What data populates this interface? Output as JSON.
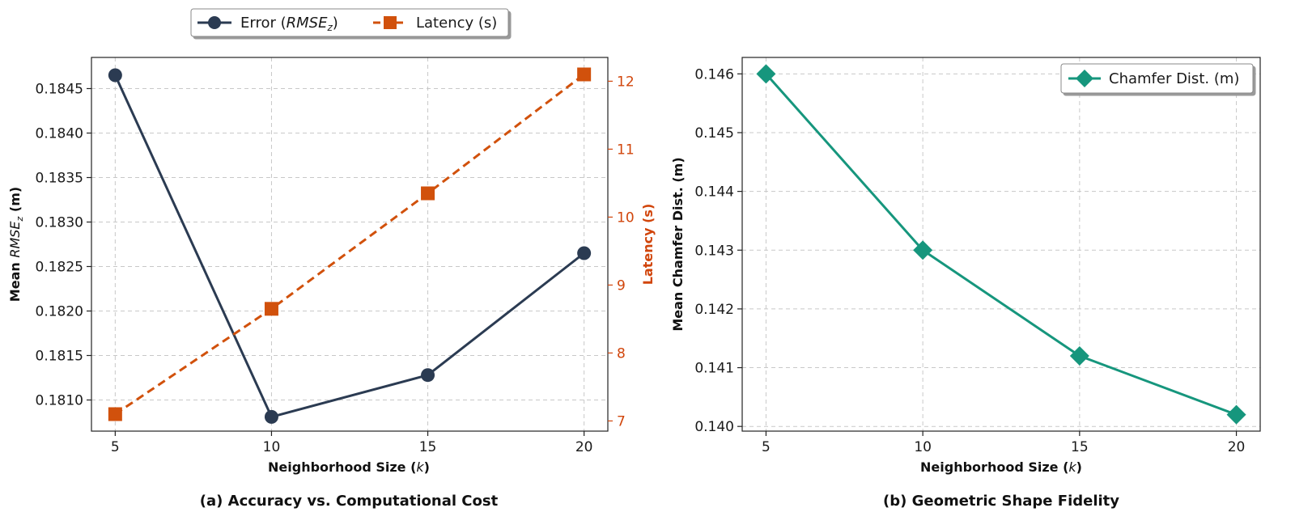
{
  "chart_data": [
    {
      "id": "a",
      "type": "line",
      "caption": "(a) Accuracy vs. Computational Cost",
      "xlabel": "Neighborhood Size (k)",
      "ylabel": "Mean RMSE_z (m)",
      "y2label": "Latency (s)",
      "x": [
        5,
        10,
        15,
        20
      ],
      "xticks": [
        "5",
        "10",
        "15",
        "20"
      ],
      "ylim": [
        0.18065,
        0.18485
      ],
      "yticks": [
        "0.1810",
        "0.1815",
        "0.1820",
        "0.1825",
        "0.1830",
        "0.1835",
        "0.1840",
        "0.1845"
      ],
      "y2lim": [
        6.85,
        12.35
      ],
      "y2ticks": [
        "7",
        "8",
        "9",
        "10",
        "11",
        "12"
      ],
      "grid": true,
      "legend_position": "top-center-outside",
      "series": [
        {
          "name": "Error (RMSE_z)",
          "axis": "left",
          "color": "#2b3b52",
          "marker": "circle",
          "linestyle": "solid",
          "values": [
            0.18465,
            0.18081,
            0.18128,
            0.18265
          ]
        },
        {
          "name": "Latency (s)",
          "axis": "right",
          "color": "#d1510c",
          "marker": "square",
          "linestyle": "dashed",
          "values": [
            7.1,
            8.65,
            10.35,
            12.1
          ]
        }
      ]
    },
    {
      "id": "b",
      "type": "line",
      "caption": "(b) Geometric Shape Fidelity",
      "xlabel": "Neighborhood Size (k)",
      "ylabel": "Mean Chamfer Dist. (m)",
      "x": [
        5,
        10,
        15,
        20
      ],
      "xticks": [
        "5",
        "10",
        "15",
        "20"
      ],
      "ylim": [
        0.13992,
        0.14628
      ],
      "yticks": [
        "0.140",
        "0.141",
        "0.142",
        "0.143",
        "0.144",
        "0.145",
        "0.146"
      ],
      "grid": true,
      "legend_position": "top-right",
      "series": [
        {
          "name": "Chamfer Dist. (m)",
          "color": "#16967d",
          "marker": "diamond",
          "linestyle": "solid",
          "values": [
            0.146,
            0.143,
            0.1412,
            0.1402
          ]
        }
      ]
    }
  ]
}
